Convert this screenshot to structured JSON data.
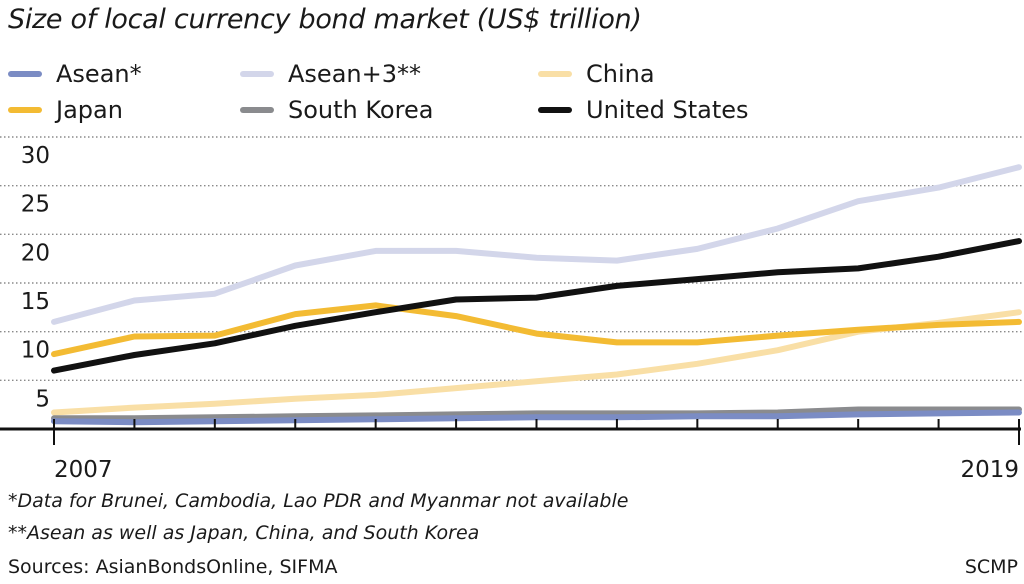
{
  "chart_data": {
    "type": "line",
    "title": "Size of local currency bond market (US$ trillion)",
    "xlabel": "",
    "ylabel": "",
    "x": [
      2007,
      2008,
      2009,
      2010,
      2011,
      2012,
      2013,
      2014,
      2015,
      2016,
      2017,
      2018,
      2019
    ],
    "x_tick_labels": [
      "2007",
      "2019"
    ],
    "y_ticks": [
      5,
      10,
      15,
      20,
      25,
      30
    ],
    "y_tick_labels": [
      "5",
      "10",
      "15",
      "20",
      "25",
      "30"
    ],
    "ylim": [
      0,
      30
    ],
    "grid": true,
    "legend_position": "top",
    "series": [
      {
        "name": "Asean*",
        "color": "#7b8cc4",
        "values": [
          0.8,
          0.7,
          0.8,
          0.9,
          1.0,
          1.1,
          1.2,
          1.2,
          1.3,
          1.3,
          1.5,
          1.6,
          1.7
        ]
      },
      {
        "name": "Asean+3**",
        "color": "#d3d6ea",
        "values": [
          11.0,
          13.2,
          13.9,
          16.8,
          18.3,
          18.3,
          17.6,
          17.3,
          18.5,
          20.6,
          23.4,
          24.8,
          26.9
        ]
      },
      {
        "name": "China",
        "color": "#f9dfa6",
        "values": [
          1.7,
          2.2,
          2.6,
          3.1,
          3.5,
          4.2,
          4.9,
          5.6,
          6.7,
          8.1,
          10.0,
          10.9,
          12.0
        ]
      },
      {
        "name": "Japan",
        "color": "#f3bb33",
        "values": [
          7.7,
          9.5,
          9.6,
          11.8,
          12.7,
          11.6,
          9.8,
          8.9,
          8.9,
          9.6,
          10.2,
          10.7,
          11.0
        ]
      },
      {
        "name": "South Korea",
        "color": "#8a8b8e",
        "values": [
          1.1,
          1.1,
          1.2,
          1.3,
          1.4,
          1.5,
          1.6,
          1.6,
          1.6,
          1.7,
          2.0,
          2.0,
          2.0
        ]
      },
      {
        "name": "United States",
        "color": "#111111",
        "values": [
          6.0,
          7.6,
          8.8,
          10.6,
          12.0,
          13.3,
          13.5,
          14.7,
          15.4,
          16.1,
          16.5,
          17.7,
          19.3
        ]
      }
    ]
  },
  "footnotes": {
    "note1": "*Data for Brunei, Cambodia, Lao PDR and Myanmar not available",
    "note2": "**Asean as well as Japan, China, and South Korea",
    "sources": "Sources: AsianBondsOnline, SIFMA",
    "credit": "SCMP"
  }
}
